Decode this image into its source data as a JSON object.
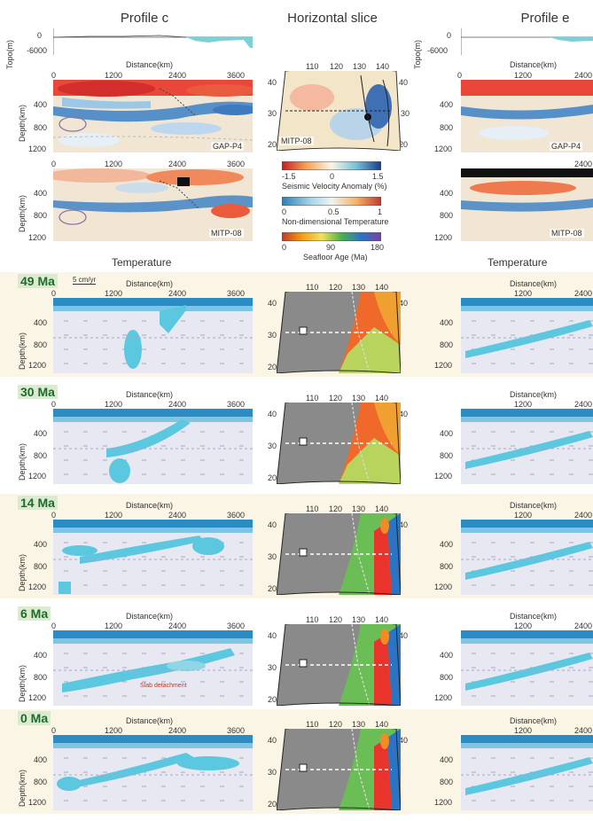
{
  "headers": {
    "profile_c": "Profile c",
    "horizontal": "Horizontal slice",
    "profile_e": "Profile e"
  },
  "topo": {
    "label": "Topo(m)",
    "tick_0": "0",
    "tick_m": "-6000"
  },
  "distance_label": "Distance(km)",
  "depth_label": "Depth(km)",
  "dist_ticks": [
    "0",
    "1200",
    "2400",
    "3600"
  ],
  "dist_ticks_e": [
    "0",
    "1200",
    "2400"
  ],
  "depth_ticks": [
    "400",
    "800",
    "1200"
  ],
  "model_labels": {
    "gap": "GAP-P4",
    "mitp": "MITP-08",
    "gap_e": "GAP-P4",
    "mitp_e": "MITP-08"
  },
  "temperature_label": "Temperature",
  "map_lon": [
    "110",
    "120",
    "130",
    "140"
  ],
  "map_lat": [
    "40",
    "30",
    "20"
  ],
  "colorbars": {
    "velocity": {
      "ticks": [
        "-1.5",
        "0",
        "1.5"
      ],
      "title": "Seismic Velocity Anomaly (%)"
    },
    "temperature": {
      "ticks": [
        "0",
        "0.5",
        "1"
      ],
      "title": "Non-dimensional Temperature"
    },
    "age": {
      "ticks": [
        "0",
        "90",
        "180"
      ],
      "title": "Seafloor Age (Ma)"
    }
  },
  "scale_bar": "5 cm/yr",
  "snapshots": [
    {
      "age": "49 Ma"
    },
    {
      "age": "30 Ma"
    },
    {
      "age": "14 Ma"
    },
    {
      "age": "6 Ma"
    },
    {
      "age": "0 Ma"
    }
  ],
  "annotations": {
    "slab_detachment": "Slab detachment"
  },
  "colors": {
    "ocean": "#2b8cc4",
    "slab": "#5bc8e0",
    "mantle": "#e6e8f0",
    "continent": "#8a8a8a",
    "band": "#faf5e4",
    "age_tag": "#dcebcf"
  }
}
